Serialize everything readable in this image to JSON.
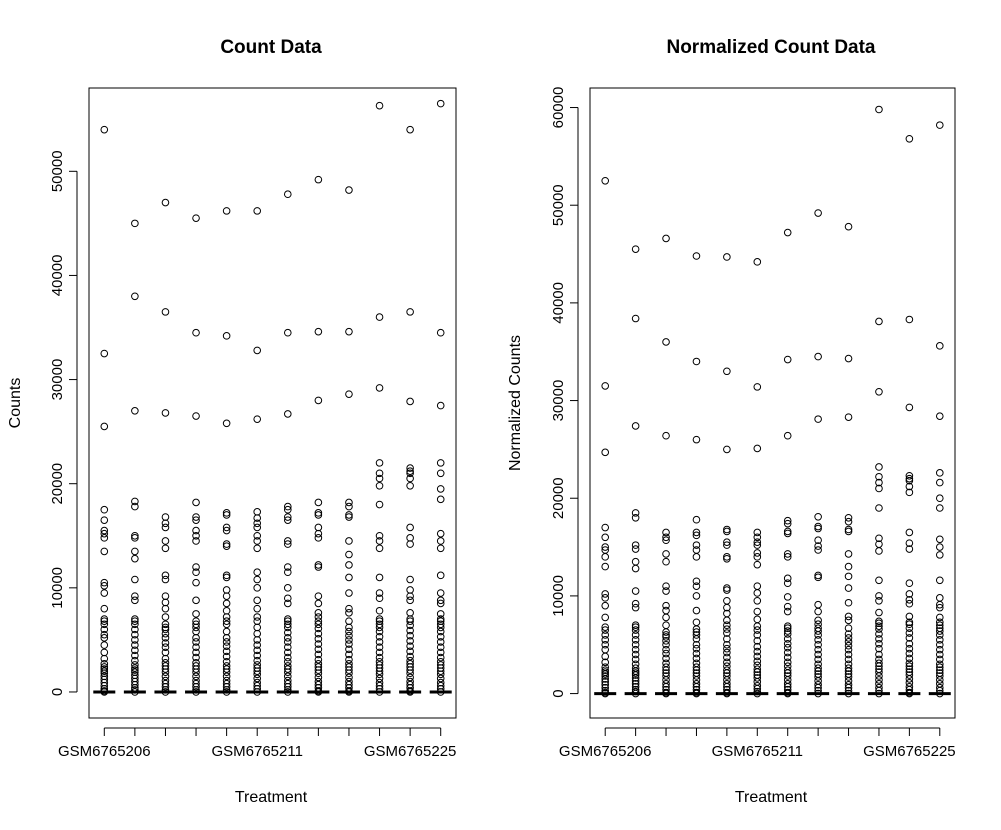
{
  "chart_data": [
    {
      "type": "scatter",
      "title": "Count Data",
      "xlabel": "Treatment",
      "ylabel": "Counts",
      "ylim": [
        -2500,
        58000
      ],
      "yticks": [
        0,
        10000,
        20000,
        30000,
        40000,
        50000
      ],
      "xtick_labels": [
        "GSM6765206",
        "GSM6765211",
        "GSM6765225"
      ],
      "xtick_positions": [
        1,
        6,
        11
      ],
      "grid": false,
      "legend": "none",
      "series": [
        {
          "values": [
            54000,
            32500,
            25500,
            17500,
            16500,
            15500,
            15200,
            14800,
            13500,
            10500,
            10200,
            9500,
            8000,
            7000,
            6800,
            6500,
            6000,
            5500,
            5200,
            4500,
            3800,
            3200,
            2700,
            2400,
            2200,
            2000,
            1800,
            1500,
            1200,
            900,
            600,
            300,
            100,
            0
          ]
        },
        {
          "values": [
            45000,
            38000,
            27000,
            18300,
            17800,
            15000,
            14800,
            13500,
            12800,
            10800,
            9200,
            8800,
            7000,
            6800,
            6500,
            6000,
            5500,
            5000,
            4500,
            4000,
            3500,
            3000,
            2600,
            2300,
            2100,
            1900,
            1600,
            1300,
            1000,
            700,
            400,
            200,
            0
          ]
        },
        {
          "values": [
            47000,
            36500,
            26800,
            16800,
            16200,
            15800,
            14500,
            13800,
            11200,
            10800,
            9200,
            8600,
            8000,
            7200,
            6500,
            6200,
            6000,
            5600,
            5200,
            4700,
            4300,
            3800,
            3200,
            2800,
            2500,
            2200,
            1900,
            1500,
            1100,
            800,
            500,
            200,
            0
          ]
        },
        {
          "values": [
            45500,
            34500,
            26500,
            18200,
            16800,
            16500,
            15500,
            15000,
            14500,
            12000,
            11500,
            10500,
            8800,
            7500,
            6800,
            6500,
            6200,
            5800,
            5200,
            4800,
            4300,
            3800,
            3300,
            2800,
            2500,
            2200,
            1900,
            1500,
            1100,
            800,
            500,
            200,
            0
          ]
        },
        {
          "values": [
            46200,
            34200,
            25800,
            17200,
            17000,
            15800,
            15500,
            14200,
            14000,
            11200,
            11000,
            9800,
            9200,
            8500,
            7800,
            7200,
            6800,
            6500,
            5800,
            5200,
            4800,
            4400,
            3900,
            3400,
            2900,
            2500,
            2200,
            1900,
            1500,
            1100,
            800,
            500,
            200,
            0
          ]
        },
        {
          "values": [
            46200,
            32800,
            26200,
            17300,
            16700,
            16200,
            15800,
            15000,
            14500,
            13800,
            11500,
            10800,
            10000,
            8800,
            8000,
            7200,
            6800,
            6200,
            5600,
            5000,
            4500,
            4000,
            3500,
            3000,
            2600,
            2300,
            2000,
            1700,
            1300,
            900,
            600,
            300,
            0
          ]
        },
        {
          "values": [
            47800,
            34500,
            26700,
            17800,
            17500,
            16800,
            16500,
            14500,
            14200,
            12000,
            11500,
            10000,
            9000,
            8500,
            7000,
            6800,
            6500,
            6200,
            5700,
            5200,
            4800,
            4300,
            3800,
            3300,
            2900,
            2500,
            2200,
            1900,
            1500,
            1100,
            800,
            500,
            200,
            0
          ]
        },
        {
          "values": [
            49200,
            34600,
            28000,
            18200,
            17200,
            17000,
            15800,
            15200,
            14800,
            12200,
            12000,
            9200,
            8500,
            7600,
            7200,
            6800,
            6500,
            6100,
            5600,
            5100,
            4600,
            4100,
            3600,
            3100,
            2700,
            2400,
            2100,
            1800,
            1400,
            1000,
            700,
            400,
            100,
            0
          ]
        },
        {
          "values": [
            48200,
            34600,
            28600,
            18200,
            17800,
            17000,
            16800,
            14500,
            13200,
            12200,
            11000,
            9500,
            8000,
            7600,
            6800,
            6200,
            5800,
            5400,
            5000,
            4600,
            4100,
            3600,
            3100,
            2700,
            2400,
            2100,
            1800,
            1400,
            1000,
            700,
            400,
            100,
            0
          ]
        },
        {
          "values": [
            56300,
            36000,
            29200,
            22000,
            21000,
            20500,
            19800,
            18000,
            15000,
            14500,
            13800,
            11000,
            9500,
            9000,
            7800,
            7000,
            6800,
            6500,
            6200,
            5800,
            5300,
            4800,
            4300,
            3800,
            3300,
            2900,
            2600,
            2300,
            2000,
            1700,
            1300,
            900,
            600,
            300,
            0
          ]
        },
        {
          "values": [
            54000,
            36500,
            27900,
            21500,
            21200,
            21000,
            20500,
            19800,
            15800,
            14800,
            14200,
            10800,
            9800,
            9200,
            8800,
            7600,
            7000,
            6800,
            6400,
            5900,
            5400,
            4900,
            4400,
            3900,
            3400,
            3000,
            2700,
            2400,
            2100,
            1800,
            1400,
            1000,
            700,
            400,
            100,
            0
          ]
        },
        {
          "values": [
            56500,
            34500,
            27500,
            22000,
            21000,
            19500,
            18500,
            15200,
            14500,
            13800,
            11200,
            9500,
            8800,
            8500,
            7500,
            7000,
            6800,
            6500,
            6200,
            5800,
            5300,
            4800,
            4300,
            3800,
            3300,
            2900,
            2600,
            2300,
            2000,
            1700,
            1300,
            900,
            600,
            300,
            0
          ]
        }
      ]
    },
    {
      "type": "scatter",
      "title": "Normalized Count Data",
      "xlabel": "Treatment",
      "ylabel": "Normalized Counts",
      "ylim": [
        -2500,
        62000
      ],
      "yticks": [
        0,
        10000,
        20000,
        30000,
        40000,
        50000,
        60000
      ],
      "xtick_labels": [
        "GSM6765206",
        "GSM6765211",
        "GSM6765225"
      ],
      "xtick_positions": [
        1,
        6,
        11
      ],
      "grid": false,
      "legend": "none",
      "series": [
        {
          "values": [
            52500,
            31500,
            24700,
            17000,
            16000,
            15000,
            14700,
            14000,
            13000,
            10200,
            9800,
            9000,
            7800,
            6800,
            6500,
            6000,
            5500,
            5000,
            4500,
            3800,
            3200,
            2700,
            2400,
            2200,
            2000,
            1800,
            1500,
            1200,
            900,
            600,
            300,
            100,
            0
          ]
        },
        {
          "values": [
            45500,
            38400,
            27400,
            18500,
            18000,
            15200,
            14800,
            13500,
            12800,
            10500,
            9200,
            8800,
            7000,
            6800,
            6500,
            6000,
            5500,
            5000,
            4500,
            4000,
            3500,
            3000,
            2600,
            2300,
            2100,
            1900,
            1600,
            1300,
            1000,
            700,
            400,
            200,
            0
          ]
        },
        {
          "values": [
            46600,
            36000,
            26400,
            16500,
            16000,
            15700,
            14300,
            13500,
            11000,
            10500,
            9000,
            8500,
            7800,
            7000,
            6300,
            6000,
            5800,
            5400,
            5000,
            4500,
            4100,
            3600,
            3100,
            2700,
            2400,
            2100,
            1800,
            1400,
            1000,
            700,
            400,
            100,
            0
          ]
        },
        {
          "values": [
            44800,
            34000,
            26000,
            17800,
            16500,
            16200,
            15200,
            14700,
            14000,
            11500,
            11000,
            10000,
            8500,
            7300,
            6600,
            6300,
            6000,
            5600,
            5000,
            4600,
            4100,
            3600,
            3100,
            2700,
            2400,
            2100,
            1800,
            1400,
            1000,
            700,
            400,
            100,
            0
          ]
        },
        {
          "values": [
            44700,
            33000,
            25000,
            16800,
            16600,
            15500,
            15200,
            14000,
            13800,
            10800,
            10600,
            9500,
            8800,
            8200,
            7500,
            7000,
            6600,
            6200,
            5600,
            5000,
            4600,
            4200,
            3700,
            3200,
            2800,
            2400,
            2100,
            1800,
            1400,
            1000,
            700,
            400,
            100,
            0
          ]
        },
        {
          "values": [
            44200,
            31400,
            25100,
            16500,
            16000,
            15500,
            15200,
            14400,
            14000,
            13200,
            11000,
            10300,
            9500,
            8400,
            7600,
            6900,
            6500,
            6000,
            5400,
            4800,
            4300,
            3800,
            3300,
            2900,
            2500,
            2200,
            1900,
            1600,
            1200,
            800,
            500,
            200,
            0
          ]
        },
        {
          "values": [
            47200,
            34200,
            26400,
            17700,
            17400,
            16600,
            16400,
            14300,
            14000,
            11800,
            11300,
            9900,
            8900,
            8400,
            6900,
            6700,
            6400,
            6100,
            5600,
            5100,
            4700,
            4200,
            3700,
            3200,
            2800,
            2400,
            2100,
            1800,
            1400,
            1000,
            700,
            400,
            100,
            0
          ]
        },
        {
          "values": [
            49200,
            34500,
            28100,
            18100,
            17100,
            16900,
            15700,
            15100,
            14700,
            12100,
            11900,
            9100,
            8400,
            7500,
            7100,
            6700,
            6400,
            6000,
            5500,
            5000,
            4500,
            4000,
            3500,
            3000,
            2600,
            2300,
            2000,
            1700,
            1300,
            900,
            600,
            300,
            0
          ]
        },
        {
          "values": [
            47800,
            34300,
            28300,
            18000,
            17600,
            16800,
            16600,
            14300,
            13000,
            12000,
            10800,
            9300,
            7900,
            7500,
            6700,
            6100,
            5700,
            5300,
            4900,
            4500,
            4000,
            3500,
            3000,
            2600,
            2300,
            2000,
            1700,
            1300,
            900,
            600,
            300,
            0
          ]
        },
        {
          "values": [
            59800,
            38100,
            30900,
            23200,
            22200,
            21600,
            21000,
            19000,
            15900,
            15300,
            14600,
            11600,
            10000,
            9500,
            8300,
            7400,
            7200,
            6900,
            6600,
            6100,
            5600,
            5100,
            4600,
            4000,
            3500,
            3100,
            2800,
            2500,
            2200,
            1800,
            1400,
            1000,
            600,
            300,
            0
          ]
        },
        {
          "values": [
            56800,
            38300,
            29300,
            22300,
            22000,
            21800,
            21200,
            20600,
            16500,
            15400,
            14800,
            11300,
            10200,
            9600,
            9200,
            7900,
            7300,
            7100,
            6700,
            6200,
            5700,
            5100,
            4600,
            4100,
            3600,
            3100,
            2800,
            2500,
            2200,
            1900,
            1500,
            1100,
            700,
            400,
            100,
            0
          ]
        },
        {
          "values": [
            58200,
            35600,
            28400,
            22600,
            21600,
            20000,
            19000,
            15800,
            15000,
            14200,
            11600,
            9800,
            9100,
            8800,
            7800,
            7300,
            7000,
            6700,
            6400,
            6000,
            5500,
            5000,
            4500,
            4000,
            3500,
            3000,
            2700,
            2400,
            2100,
            1800,
            1400,
            1000,
            600,
            300,
            0
          ]
        }
      ]
    }
  ]
}
